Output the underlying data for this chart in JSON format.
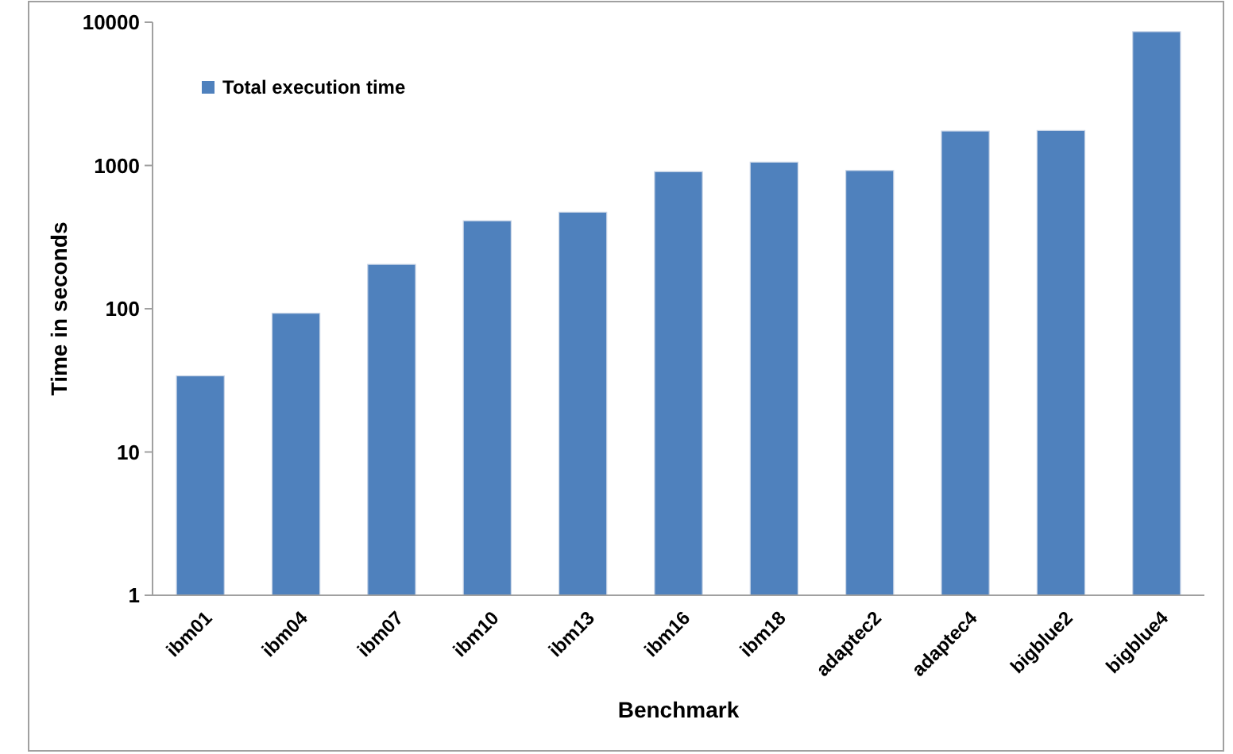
{
  "chart_data": {
    "type": "bar",
    "xlabel": "Benchmark",
    "ylabel": "Time in seconds",
    "categories": [
      "ibm01",
      "ibm04",
      "ibm07",
      "ibm10",
      "ibm13",
      "ibm16",
      "ibm18",
      "adaptec2",
      "adaptec4",
      "bigblue2",
      "bigblue4"
    ],
    "series": [
      {
        "name": "Total execution time",
        "color": "#4f81bd",
        "values": [
          34,
          93,
          204,
          411,
          472,
          906,
          1055,
          922,
          1740,
          1755,
          8590
        ]
      }
    ],
    "log": true,
    "ylim": [
      1,
      10000
    ],
    "yticks": [
      1,
      10,
      100,
      1000,
      10000
    ],
    "grid": false,
    "legend": "top left"
  }
}
